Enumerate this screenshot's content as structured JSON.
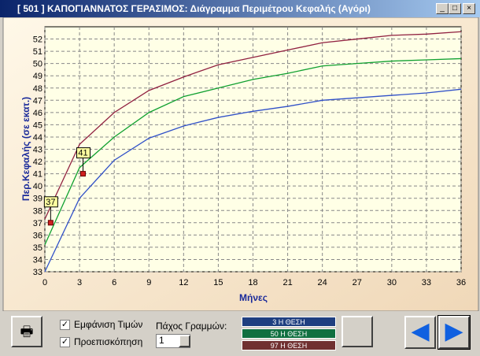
{
  "window": {
    "title": "[ 501 ] ΚΑΠΟΓΙΑΝΝΑΤΟΣ ΓΕΡΑΣΙΜΟΣ: Διάγραμμα Περιμέτρου Κεφαλής (Αγόρι)"
  },
  "controls": {
    "show_values": "Εμφάνιση Τιμών",
    "preview": "Προεπισκόπηση",
    "line_width_label": "Πάχος Γραμμών:",
    "line_width": "1"
  },
  "chart_data": {
    "type": "line",
    "y_label": "Περ.Κεφαλής (σε εκατ.)",
    "x_label": "Μήνες",
    "x": [
      0,
      3,
      6,
      9,
      12,
      15,
      18,
      21,
      24,
      27,
      30,
      33,
      36
    ],
    "series": [
      {
        "name": "3 Η ΘΕΣΗ",
        "color": "#3050c8",
        "button_color": "#1f3f80",
        "values": [
          33,
          39,
          42.1,
          43.9,
          44.9,
          45.6,
          46.1,
          46.5,
          47.0,
          47.2,
          47.4,
          47.6,
          47.9
        ]
      },
      {
        "name": "50 Η ΘΕΣΗ",
        "color": "#10a030",
        "button_color": "#107040",
        "values": [
          35.2,
          41.5,
          44,
          46,
          47.3,
          48,
          48.7,
          49.2,
          49.8,
          50,
          50.2,
          50.3,
          50.4
        ]
      },
      {
        "name": "97 Η ΘΕΣΗ",
        "color": "#902040",
        "button_color": "#703030",
        "values": [
          37.3,
          43.4,
          46,
          47.8,
          48.9,
          49.9,
          50.5,
          51.1,
          51.7,
          52,
          52.3,
          52.4,
          52.6
        ]
      }
    ],
    "annotations": [
      {
        "x": 0.5,
        "y": 37
      },
      {
        "x": 3.3,
        "y": 41
      }
    ],
    "xlim": [
      0,
      36
    ],
    "xticks": [
      0,
      3,
      6,
      9,
      12,
      15,
      18,
      21,
      24,
      27,
      30,
      33,
      36
    ],
    "ylim": [
      33,
      53
    ],
    "yticks": [
      33,
      34,
      35,
      36,
      37,
      38,
      39,
      40,
      41,
      42,
      43,
      44,
      45,
      46,
      47,
      48,
      49,
      50,
      51,
      52
    ],
    "grid": true
  }
}
